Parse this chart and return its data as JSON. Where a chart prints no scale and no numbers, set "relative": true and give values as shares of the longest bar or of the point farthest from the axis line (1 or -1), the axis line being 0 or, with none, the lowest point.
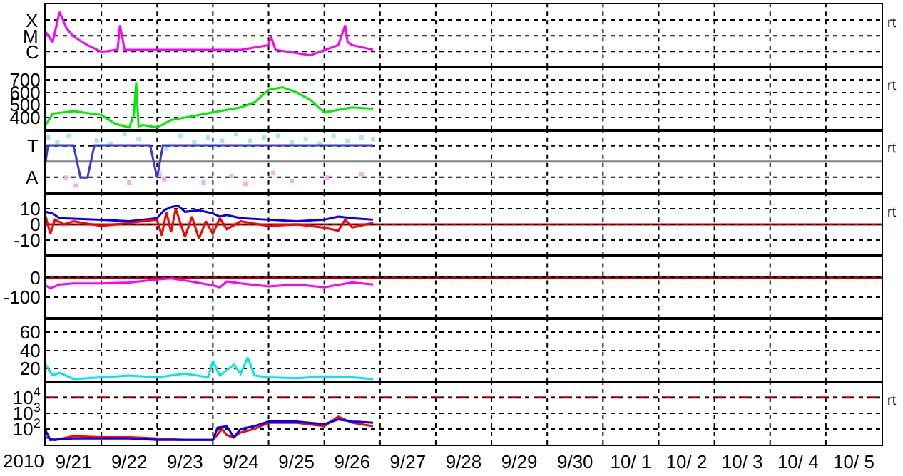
{
  "chart_data": [
    {
      "type": "line",
      "relative": true,
      "ylabel": "X\nM\nC",
      "grid": true,
      "tick_labels": "y",
      "annotations": [
        "rt"
      ],
      "xlim": [
        "2010-09-21",
        "2010-10-06"
      ],
      "xticks": [
        {
          "value": "2010-09-22",
          "label": null
        },
        {
          "value": "2010-09-23",
          "label": null
        },
        {
          "value": "2010-09-24",
          "label": null
        },
        {
          "value": "2010-09-25",
          "label": null
        },
        {
          "value": "2010-09-26",
          "label": null
        },
        {
          "value": "2010-09-27",
          "label": null
        },
        {
          "value": "2010-09-28",
          "label": null
        },
        {
          "value": "2010-09-29",
          "label": null
        },
        {
          "value": "2010-09-30",
          "label": null
        },
        {
          "value": "2010-10-01",
          "label": null
        },
        {
          "value": "2010-10-02",
          "label": null
        },
        {
          "value": "2010-10-03",
          "label": null
        },
        {
          "value": "2010-10-04",
          "label": null
        },
        {
          "value": "2010-10-05",
          "label": null
        }
      ],
      "series": [
        {
          "color": "#ff00ff",
          "x": [
            "2010-09-21T00:00",
            "2010-09-21T03:00",
            "2010-09-21T06:00",
            "2010-09-21T09:00",
            "2010-09-21T12:00",
            "2010-09-21T18:00",
            "2010-09-22T00:00",
            "2010-09-22T07:00",
            "2010-09-22T08:00",
            "2010-09-22T10:00",
            "2010-09-23T12:00",
            "2010-09-24T12:00",
            "2010-09-25T00:00",
            "2010-09-25T01:00",
            "2010-09-25T03:00",
            "2010-09-25T18:00",
            "2010-09-26T06:00",
            "2010-09-26T09:00",
            "2010-09-26T10:00",
            "2010-09-26T12:00",
            "2010-09-26T21:00"
          ],
          "values": [
            0.61,
            0.41,
            1,
            0.68,
            0.52,
            0.35,
            0.22,
            0.26,
            0.74,
            0.26,
            0.26,
            0.26,
            0.35,
            0.52,
            0.26,
            0.15,
            0.35,
            0.74,
            0.41,
            0.35,
            0.26
          ]
        }
      ]
    },
    {
      "type": "line",
      "ylim": [
        300,
        800
      ],
      "yticks": [
        400,
        500,
        600,
        700
      ],
      "grid": true,
      "tick_labels": "y",
      "annotations": [
        "rt"
      ],
      "xlim": [
        "2010-09-21",
        "2010-10-06"
      ],
      "xticks": [
        {
          "value": "2010-09-22",
          "label": null
        },
        {
          "value": "2010-09-23",
          "label": null
        },
        {
          "value": "2010-09-24",
          "label": null
        },
        {
          "value": "2010-09-25",
          "label": null
        },
        {
          "value": "2010-09-26",
          "label": null
        },
        {
          "value": "2010-09-27",
          "label": null
        },
        {
          "value": "2010-09-28",
          "label": null
        },
        {
          "value": "2010-09-29",
          "label": null
        },
        {
          "value": "2010-09-30",
          "label": null
        },
        {
          "value": "2010-10-01",
          "label": null
        },
        {
          "value": "2010-10-02",
          "label": null
        },
        {
          "value": "2010-10-03",
          "label": null
        },
        {
          "value": "2010-10-04",
          "label": null
        },
        {
          "value": "2010-10-05",
          "label": null
        }
      ],
      "series": [
        {
          "color": "#00ee00",
          "x": [
            "2010-09-21T00:00",
            "2010-09-21T03:00",
            "2010-09-21T12:00",
            "2010-09-22T00:00",
            "2010-09-22T06:00",
            "2010-09-22T12:00",
            "2010-09-22T14:00",
            "2010-09-22T15:00",
            "2010-09-22T16:00",
            "2010-09-22T18:00",
            "2010-09-23T00:00",
            "2010-09-23T06:00",
            "2010-09-23T12:00",
            "2010-09-24T00:00",
            "2010-09-24T12:00",
            "2010-09-24T18:00",
            "2010-09-25T00:00",
            "2010-09-25T06:00",
            "2010-09-25T12:00",
            "2010-09-25T18:00",
            "2010-09-26T00:00",
            "2010-09-26T06:00",
            "2010-09-26T12:00",
            "2010-09-26T21:00"
          ],
          "values": [
            340,
            430,
            450,
            420,
            350,
            320,
            420,
            680,
            330,
            340,
            320,
            380,
            400,
            440,
            480,
            520,
            620,
            640,
            600,
            540,
            440,
            460,
            480,
            470
          ]
        }
      ]
    },
    {
      "type": "line",
      "relative": true,
      "ylabel": "T\nA",
      "grid": true,
      "tick_labels": "y",
      "annotations": [
        "rt"
      ],
      "ref_lines": [
        {
          "axis": "y",
          "value": 0,
          "color": "#808080"
        }
      ],
      "xlim": [
        "2010-09-21",
        "2010-10-06"
      ],
      "xticks": [
        {
          "value": "2010-09-22",
          "label": null
        },
        {
          "value": "2010-09-23",
          "label": null
        },
        {
          "value": "2010-09-24",
          "label": null
        },
        {
          "value": "2010-09-25",
          "label": null
        },
        {
          "value": "2010-09-26",
          "label": null
        },
        {
          "value": "2010-09-27",
          "label": null
        },
        {
          "value": "2010-09-28",
          "label": null
        },
        {
          "value": "2010-09-29",
          "label": null
        },
        {
          "value": "2010-09-30",
          "label": null
        },
        {
          "value": "2010-10-01",
          "label": null
        },
        {
          "value": "2010-10-02",
          "label": null
        },
        {
          "value": "2010-10-03",
          "label": null
        },
        {
          "value": "2010-10-04",
          "label": null
        },
        {
          "value": "2010-10-05",
          "label": null
        }
      ],
      "series": [
        {
          "type": "scatter",
          "color": "#a8e4f8",
          "x": [
            "2010-09-21T01:00",
            "2010-09-21T05:00",
            "2010-09-21T10:00",
            "2010-09-21T22:00",
            "2010-09-22T04:00",
            "2010-09-22T10:00",
            "2010-09-22T16:00",
            "2010-09-23T04:00",
            "2010-09-23T10:00",
            "2010-09-23T16:00",
            "2010-09-23T22:00",
            "2010-09-24T04:00",
            "2010-09-24T10:00",
            "2010-09-24T16:00",
            "2010-09-24T22:00",
            "2010-09-25T04:00",
            "2010-09-25T10:00",
            "2010-09-25T16:00",
            "2010-09-25T22:00",
            "2010-09-26T04:00",
            "2010-09-26T10:00",
            "2010-09-26T16:00",
            "2010-09-26T21:00"
          ],
          "values": [
            0.88,
            0.71,
            0.94,
            0.76,
            0.65,
            1,
            0.82,
            0.47,
            0.94,
            0.71,
            0.88,
            0.76,
            1,
            0.76,
            0.88,
            0.94,
            0.71,
            0.82,
            0.65,
            0.94,
            0.76,
            0.88,
            0.82
          ]
        },
        {
          "type": "scatter",
          "color": "#f0b0f0",
          "x": [
            "2010-09-21T09:00",
            "2010-09-21T13:00",
            "2010-09-22T12:00",
            "2010-09-23T01:00",
            "2010-09-23T03:00",
            "2010-09-23T20:00",
            "2010-09-24T08:00",
            "2010-09-24T14:00",
            "2010-09-25T02:00",
            "2010-09-25T10:00",
            "2010-09-26T01:00",
            "2010-09-26T16:00"
          ],
          "values": [
            -0.59,
            -0.88,
            -0.76,
            -0.47,
            -0.65,
            -0.76,
            -0.53,
            -0.82,
            -0.41,
            -0.71,
            -0.59,
            -0.47
          ]
        },
        {
          "color": "#3c3cc8",
          "x": [
            "2010-09-21T00:00",
            "2010-09-21T01:00",
            "2010-09-21T12:00",
            "2010-09-21T15:00",
            "2010-09-21T18:00",
            "2010-09-21T21:00",
            "2010-09-22T21:00",
            "2010-09-23T00:00",
            "2010-09-23T02:30",
            "2010-09-26T21:00"
          ],
          "values": [
            0,
            0.59,
            0.59,
            -0.59,
            -0.59,
            0.59,
            0.59,
            -0.59,
            0.59,
            0.59
          ]
        }
      ]
    },
    {
      "type": "line",
      "ylim": [
        -20,
        20
      ],
      "yticks": [
        -10,
        0,
        10
      ],
      "grid": true,
      "tick_labels": "y",
      "annotations": [
        "rt"
      ],
      "ref_lines": [
        {
          "axis": "y",
          "value": 0,
          "color": "#c00000"
        }
      ],
      "xlim": [
        "2010-09-21",
        "2010-10-06"
      ],
      "xticks": [
        {
          "value": "2010-09-22",
          "label": null
        },
        {
          "value": "2010-09-23",
          "label": null
        },
        {
          "value": "2010-09-24",
          "label": null
        },
        {
          "value": "2010-09-25",
          "label": null
        },
        {
          "value": "2010-09-26",
          "label": null
        },
        {
          "value": "2010-09-27",
          "label": null
        },
        {
          "value": "2010-09-28",
          "label": null
        },
        {
          "value": "2010-09-29",
          "label": null
        },
        {
          "value": "2010-09-30",
          "label": null
        },
        {
          "value": "2010-10-01",
          "label": null
        },
        {
          "value": "2010-10-02",
          "label": null
        },
        {
          "value": "2010-10-03",
          "label": null
        },
        {
          "value": "2010-10-04",
          "label": null
        },
        {
          "value": "2010-10-05",
          "label": null
        }
      ],
      "series": [
        {
          "color": "#0000ff",
          "x": [
            "2010-09-21T00:00",
            "2010-09-21T03:00",
            "2010-09-21T06:00",
            "2010-09-22T00:00",
            "2010-09-22T12:00",
            "2010-09-23T00:00",
            "2010-09-23T03:00",
            "2010-09-23T06:00",
            "2010-09-23T09:00",
            "2010-09-23T12:00",
            "2010-09-23T18:00",
            "2010-09-24T00:00",
            "2010-09-24T03:00",
            "2010-09-24T06:00",
            "2010-09-24T12:00",
            "2010-09-25T00:00",
            "2010-09-25T12:00",
            "2010-09-26T00:00",
            "2010-09-26T06:00",
            "2010-09-26T12:00",
            "2010-09-26T21:00"
          ],
          "values": [
            8,
            7,
            4,
            3,
            2,
            4,
            9,
            11,
            12,
            8,
            9,
            7,
            5,
            6,
            4,
            3,
            2,
            3,
            5,
            4,
            3
          ]
        },
        {
          "color": "#ff0000",
          "x": [
            "2010-09-21T00:00",
            "2010-09-21T02:00",
            "2010-09-21T04:00",
            "2010-09-21T08:00",
            "2010-09-21T12:00",
            "2010-09-22T00:00",
            "2010-09-22T12:00",
            "2010-09-23T00:00",
            "2010-09-23T02:00",
            "2010-09-23T04:00",
            "2010-09-23T06:00",
            "2010-09-23T08:00",
            "2010-09-23T12:00",
            "2010-09-23T15:00",
            "2010-09-23T18:00",
            "2010-09-23T21:00",
            "2010-09-24T00:00",
            "2010-09-24T03:00",
            "2010-09-24T06:00",
            "2010-09-24T12:00",
            "2010-09-25T00:00",
            "2010-09-25T12:00",
            "2010-09-26T00:00",
            "2010-09-26T06:00",
            "2010-09-26T09:00",
            "2010-09-26T12:00",
            "2010-09-26T21:00"
          ],
          "values": [
            5,
            -6,
            3,
            0,
            2,
            -1,
            1,
            3,
            -7,
            8,
            -5,
            10,
            -8,
            5,
            -9,
            2,
            -6,
            4,
            -3,
            2,
            -1,
            0,
            -2,
            -4,
            3,
            -2,
            1
          ]
        }
      ]
    },
    {
      "type": "line",
      "ylim": [
        -210,
        110
      ],
      "yticks": [
        -100,
        0
      ],
      "grid": true,
      "tick_labels": "y",
      "ref_lines": [
        {
          "axis": "y",
          "value": 0,
          "color": "#c00000"
        }
      ],
      "xlim": [
        "2010-09-21",
        "2010-10-06"
      ],
      "xticks": [
        {
          "value": "2010-09-22",
          "label": null
        },
        {
          "value": "2010-09-23",
          "label": null
        },
        {
          "value": "2010-09-24",
          "label": null
        },
        {
          "value": "2010-09-25",
          "label": null
        },
        {
          "value": "2010-09-26",
          "label": null
        },
        {
          "value": "2010-09-27",
          "label": null
        },
        {
          "value": "2010-09-28",
          "label": null
        },
        {
          "value": "2010-09-29",
          "label": null
        },
        {
          "value": "2010-09-30",
          "label": null
        },
        {
          "value": "2010-10-01",
          "label": null
        },
        {
          "value": "2010-10-02",
          "label": null
        },
        {
          "value": "2010-10-03",
          "label": null
        },
        {
          "value": "2010-10-04",
          "label": null
        },
        {
          "value": "2010-10-05",
          "label": null
        }
      ],
      "series": [
        {
          "color": "#ff00ff",
          "x": [
            "2010-09-21T00:00",
            "2010-09-21T02:00",
            "2010-09-21T06:00",
            "2010-09-21T12:00",
            "2010-09-22T00:00",
            "2010-09-22T12:00",
            "2010-09-23T00:00",
            "2010-09-23T06:00",
            "2010-09-23T12:00",
            "2010-09-24T00:00",
            "2010-09-24T03:00",
            "2010-09-24T06:00",
            "2010-09-24T12:00",
            "2010-09-25T00:00",
            "2010-09-25T12:00",
            "2010-09-26T00:00",
            "2010-09-26T12:00",
            "2010-09-26T21:00"
          ],
          "values": [
            -40,
            -55,
            -35,
            -30,
            -30,
            -25,
            -10,
            -5,
            -15,
            -40,
            -50,
            -20,
            -30,
            -45,
            -35,
            -50,
            -25,
            -35
          ]
        }
      ]
    },
    {
      "type": "line",
      "ylim": [
        5,
        75
      ],
      "yticks": [
        20,
        40,
        60
      ],
      "grid": true,
      "tick_labels": "y",
      "xlim": [
        "2010-09-21",
        "2010-10-06"
      ],
      "xticks": [
        {
          "value": "2010-09-22",
          "label": null
        },
        {
          "value": "2010-09-23",
          "label": null
        },
        {
          "value": "2010-09-24",
          "label": null
        },
        {
          "value": "2010-09-25",
          "label": null
        },
        {
          "value": "2010-09-26",
          "label": null
        },
        {
          "value": "2010-09-27",
          "label": null
        },
        {
          "value": "2010-09-28",
          "label": null
        },
        {
          "value": "2010-09-29",
          "label": null
        },
        {
          "value": "2010-09-30",
          "label": null
        },
        {
          "value": "2010-10-01",
          "label": null
        },
        {
          "value": "2010-10-02",
          "label": null
        },
        {
          "value": "2010-10-03",
          "label": null
        },
        {
          "value": "2010-10-04",
          "label": null
        },
        {
          "value": "2010-10-05",
          "label": null
        }
      ],
      "series": [
        {
          "color": "#00e8e8",
          "x": [
            "2010-09-21T00:00",
            "2010-09-21T03:00",
            "2010-09-21T06:00",
            "2010-09-21T12:00",
            "2010-09-22T00:00",
            "2010-09-22T12:00",
            "2010-09-23T00:00",
            "2010-09-23T12:00",
            "2010-09-23T22:00",
            "2010-09-24T00:00",
            "2010-09-24T03:00",
            "2010-09-24T09:00",
            "2010-09-24T12:00",
            "2010-09-24T15:00",
            "2010-09-24T18:00",
            "2010-09-25T00:00",
            "2010-09-25T12:00",
            "2010-09-26T00:00",
            "2010-09-26T12:00",
            "2010-09-26T21:00"
          ],
          "values": [
            24,
            12,
            15,
            8,
            10,
            12,
            10,
            14,
            10,
            28,
            12,
            24,
            14,
            32,
            12,
            10,
            9,
            11,
            10,
            8
          ]
        }
      ]
    },
    {
      "type": "line",
      "log": true,
      "ylim": [
        10,
        100000.0
      ],
      "yticks": [
        {
          "value": 100,
          "label": "10$^{2}$"
        },
        {
          "value": 1000,
          "label": "10$^{3}$"
        },
        {
          "value": 10000,
          "label": "10$^{4}$"
        }
      ],
      "grid": true,
      "xlabel": "2010",
      "annotations": [
        "rt"
      ],
      "ref_lines": [
        {
          "axis": "y",
          "value": 10000,
          "color": "#c00000",
          "line_style": "dashed"
        }
      ],
      "xlim": [
        "2010-09-21",
        "2010-10-06"
      ],
      "xticks": [
        {
          "value": "2010-09-21T12:00",
          "label": "9/21"
        },
        {
          "value": "2010-09-22",
          "label": null
        },
        {
          "value": "2010-09-22T12:00",
          "label": "9/22"
        },
        {
          "value": "2010-09-23",
          "label": null
        },
        {
          "value": "2010-09-23T12:00",
          "label": "9/23"
        },
        {
          "value": "2010-09-24",
          "label": null
        },
        {
          "value": "2010-09-24T12:00",
          "label": "9/24"
        },
        {
          "value": "2010-09-25",
          "label": null
        },
        {
          "value": "2010-09-25T12:00",
          "label": "9/25"
        },
        {
          "value": "2010-09-26",
          "label": null
        },
        {
          "value": "2010-09-26T12:00",
          "label": "9/26"
        },
        {
          "value": "2010-09-27",
          "label": null
        },
        {
          "value": "2010-09-27T12:00",
          "label": "9/27"
        },
        {
          "value": "2010-09-28",
          "label": null
        },
        {
          "value": "2010-09-28T12:00",
          "label": "9/28"
        },
        {
          "value": "2010-09-29",
          "label": null
        },
        {
          "value": "2010-09-29T12:00",
          "label": "9/29"
        },
        {
          "value": "2010-09-30",
          "label": null
        },
        {
          "value": "2010-09-30T12:00",
          "label": "9/30"
        },
        {
          "value": "2010-10-01",
          "label": null
        },
        {
          "value": "2010-10-01T12:00",
          "label": "10/ 1"
        },
        {
          "value": "2010-10-02",
          "label": null
        },
        {
          "value": "2010-10-02T12:00",
          "label": "10/ 2"
        },
        {
          "value": "2010-10-03",
          "label": null
        },
        {
          "value": "2010-10-03T12:00",
          "label": "10/ 3"
        },
        {
          "value": "2010-10-04",
          "label": null
        },
        {
          "value": "2010-10-04T12:00",
          "label": "10/ 4"
        },
        {
          "value": "2010-10-05",
          "label": null
        },
        {
          "value": "2010-10-05T12:00",
          "label": "10/ 5"
        }
      ],
      "series": [
        {
          "color": "#ff0000",
          "x": [
            "2010-09-21T00:00",
            "2010-09-21T04:00",
            "2010-09-21T12:00",
            "2010-09-22T00:00",
            "2010-09-22T12:00",
            "2010-09-23T00:00",
            "2010-09-23T12:00",
            "2010-09-24T00:00",
            "2010-09-24T04:00",
            "2010-09-24T06:00",
            "2010-09-24T09:00",
            "2010-09-24T12:00",
            "2010-09-24T18:00",
            "2010-09-25T00:00",
            "2010-09-25T12:00",
            "2010-09-26T00:00",
            "2010-09-26T06:00",
            "2010-09-26T12:00",
            "2010-09-26T21:00"
          ],
          "values": [
            30,
            20,
            35,
            30,
            30,
            25,
            20,
            20,
            100,
            40,
            30,
            60,
            100,
            250,
            250,
            150,
            600,
            250,
            150
          ]
        },
        {
          "color": "#0000ff",
          "x": [
            "2010-09-21T00:00",
            "2010-09-21T02:00",
            "2010-09-21T12:00",
            "2010-09-22T00:00",
            "2010-09-22T12:00",
            "2010-09-23T00:00",
            "2010-09-23T12:00",
            "2010-09-24T00:00",
            "2010-09-24T02:00",
            "2010-09-24T06:00",
            "2010-09-24T09:00",
            "2010-09-24T12:00",
            "2010-09-24T18:00",
            "2010-09-25T00:00",
            "2010-09-25T12:00",
            "2010-09-26T00:00",
            "2010-09-26T06:00",
            "2010-09-26T12:00",
            "2010-09-26T21:00"
          ],
          "values": [
            80,
            20,
            25,
            25,
            25,
            20,
            20,
            20,
            120,
            150,
            30,
            100,
            150,
            300,
            300,
            200,
            400,
            300,
            250
          ]
        }
      ]
    }
  ]
}
